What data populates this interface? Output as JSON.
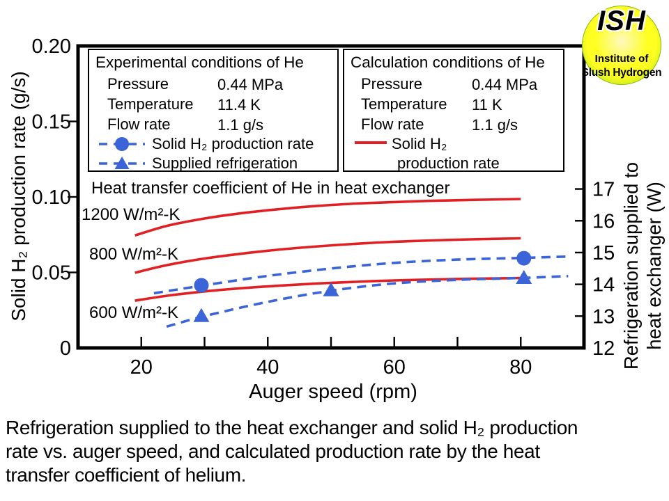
{
  "logo": {
    "acronym": "ISH",
    "line1": "Institute of",
    "line2": "Slush Hydrogen"
  },
  "colors": {
    "red": "#e02023",
    "blue": "#3a64d8",
    "axis_black": "#000000",
    "logo_center": "#fdf8c2",
    "logo_mid": "#ffff22",
    "logo_edge": "#93d214"
  },
  "legend_experimental": {
    "title": "Experimental conditions of He",
    "rows": [
      {
        "label": "Pressure",
        "value": "0.44 MPa"
      },
      {
        "label": "Temperature",
        "value": "11.4 K"
      },
      {
        "label": "Flow rate",
        "value": "1.1 g/s"
      }
    ],
    "entries": [
      {
        "label": "Solid H₂ production rate",
        "marker": "blue-dashed-circle"
      },
      {
        "label": "Supplied refrigeration",
        "marker": "blue-dashed-triangle"
      }
    ]
  },
  "legend_calculation": {
    "title": "Calculation conditions of He",
    "rows": [
      {
        "label": "Pressure",
        "value": "0.44 MPa"
      },
      {
        "label": "Temperature",
        "value": "11 K"
      },
      {
        "label": "Flow rate",
        "value": "1.1 g/s"
      }
    ],
    "entries": [
      {
        "label": "Solid H₂",
        "label2": "production rate",
        "marker": "red-solid-line"
      }
    ]
  },
  "annotations": {
    "heat_transfer": "Heat transfer coefficient of He in heat exchanger",
    "curve_1200": "1200 W/m²-K",
    "curve_800": "800 W/m²-K",
    "curve_600": "600 W/m²-K"
  },
  "caption": {
    "line1": "Refrigeration supplied to the heat exchanger and solid H₂ production",
    "line2": "rate vs. auger speed, and calculated production rate by the heat",
    "line3": "transfer coefficient of helium."
  },
  "chart_data": {
    "type": "line",
    "title": "",
    "x_axis": {
      "label": "Auger speed (rpm)",
      "min": 10,
      "max": 90,
      "ticks": [
        20,
        30,
        40,
        50,
        60,
        70,
        80
      ],
      "labeled_ticks": [
        {
          "v": 20,
          "label": "20"
        },
        {
          "v": 40,
          "label": "40"
        },
        {
          "v": 60,
          "label": "60"
        },
        {
          "v": 80,
          "label": "80"
        }
      ]
    },
    "y_left": {
      "label": "Solid H₂ production rate (g/s)",
      "min": 0,
      "max": 0.2,
      "tick_marks": [
        0.05,
        0.1,
        0.15
      ],
      "ticks": [
        {
          "v": 0,
          "label": "0"
        },
        {
          "v": 0.05,
          "label": "0.05"
        },
        {
          "v": 0.1,
          "label": "0.10"
        },
        {
          "v": 0.15,
          "label": "0.15"
        },
        {
          "v": 0.2,
          "label": "0.20"
        }
      ]
    },
    "y_right": {
      "label": "Refrigeration supplied to heat exchanger (W)",
      "label_line1": "Refrigeration supplied to",
      "label_line2": "heat exchanger (W)",
      "min": 12,
      "max": 21.5,
      "tick_marks": [
        13,
        14,
        15,
        16,
        17
      ],
      "ticks": [
        {
          "v": 12,
          "label": "12"
        },
        {
          "v": 13,
          "label": "13"
        },
        {
          "v": 14,
          "label": "14"
        },
        {
          "v": 15,
          "label": "15"
        },
        {
          "v": 16,
          "label": "16"
        },
        {
          "v": 17,
          "label": "17"
        }
      ]
    },
    "series": [
      {
        "id": "calc-1200",
        "name": "Calculated solid H₂ production rate, 1200 W/m²-K",
        "color": "red",
        "style": "solid",
        "axis": "left",
        "points": [
          [
            19,
            0.0745
          ],
          [
            24,
            0.0808
          ],
          [
            30,
            0.0857
          ],
          [
            36,
            0.0893
          ],
          [
            42,
            0.092
          ],
          [
            48,
            0.0941
          ],
          [
            54,
            0.0956
          ],
          [
            60,
            0.0966
          ],
          [
            66,
            0.0974
          ],
          [
            72,
            0.098
          ],
          [
            80,
            0.0986
          ]
        ]
      },
      {
        "id": "calc-800",
        "name": "Calculated solid H₂ production rate, 800 W/m²-K",
        "color": "red",
        "style": "solid",
        "axis": "left",
        "points": [
          [
            19,
            0.0498
          ],
          [
            24,
            0.0548
          ],
          [
            30,
            0.0592
          ],
          [
            36,
            0.0625
          ],
          [
            42,
            0.0652
          ],
          [
            48,
            0.0673
          ],
          [
            54,
            0.069
          ],
          [
            60,
            0.0703
          ],
          [
            66,
            0.0712
          ],
          [
            72,
            0.0719
          ],
          [
            80,
            0.0726
          ]
        ]
      },
      {
        "id": "calc-600",
        "name": "Calculated solid H₂ production rate, 600 W/m²-K",
        "color": "red",
        "style": "solid",
        "axis": "left",
        "points": [
          [
            19,
            0.0313
          ],
          [
            24,
            0.0345
          ],
          [
            30,
            0.0374
          ],
          [
            36,
            0.0396
          ],
          [
            42,
            0.0413
          ],
          [
            48,
            0.0427
          ],
          [
            54,
            0.0438
          ],
          [
            60,
            0.0447
          ],
          [
            66,
            0.0453
          ],
          [
            72,
            0.0458
          ],
          [
            80,
            0.0463
          ]
        ]
      },
      {
        "id": "exp-production",
        "name": "Solid H₂ production rate (experimental)",
        "color": "blue",
        "style": "dashed",
        "axis": "left",
        "points": [
          [
            22,
            0.0362
          ],
          [
            30,
            0.0415
          ],
          [
            40,
            0.0477
          ],
          [
            50,
            0.0526
          ],
          [
            60,
            0.0563
          ],
          [
            70,
            0.0585
          ],
          [
            80,
            0.0596
          ],
          [
            87.5,
            0.0605
          ]
        ],
        "markers": {
          "shape": "circle",
          "at": [
            [
              29.5,
              0.0415
            ],
            [
              80.5,
              0.0594
            ]
          ]
        }
      },
      {
        "id": "exp-refrigeration",
        "name": "Supplied refrigeration (experimental)",
        "color": "blue",
        "style": "dashed",
        "axis": "right",
        "points": [
          [
            24,
            12.67
          ],
          [
            30,
            13.0
          ],
          [
            40,
            13.45
          ],
          [
            50,
            13.8
          ],
          [
            60,
            14.03
          ],
          [
            70,
            14.14
          ],
          [
            80,
            14.2
          ],
          [
            87.5,
            14.26
          ]
        ],
        "markers": {
          "shape": "triangle",
          "at": [
            [
              29.5,
              12.99
            ],
            [
              50,
              13.8
            ],
            [
              80.5,
              14.19
            ]
          ]
        }
      }
    ],
    "legend_position": "inside-top",
    "grid": false
  }
}
